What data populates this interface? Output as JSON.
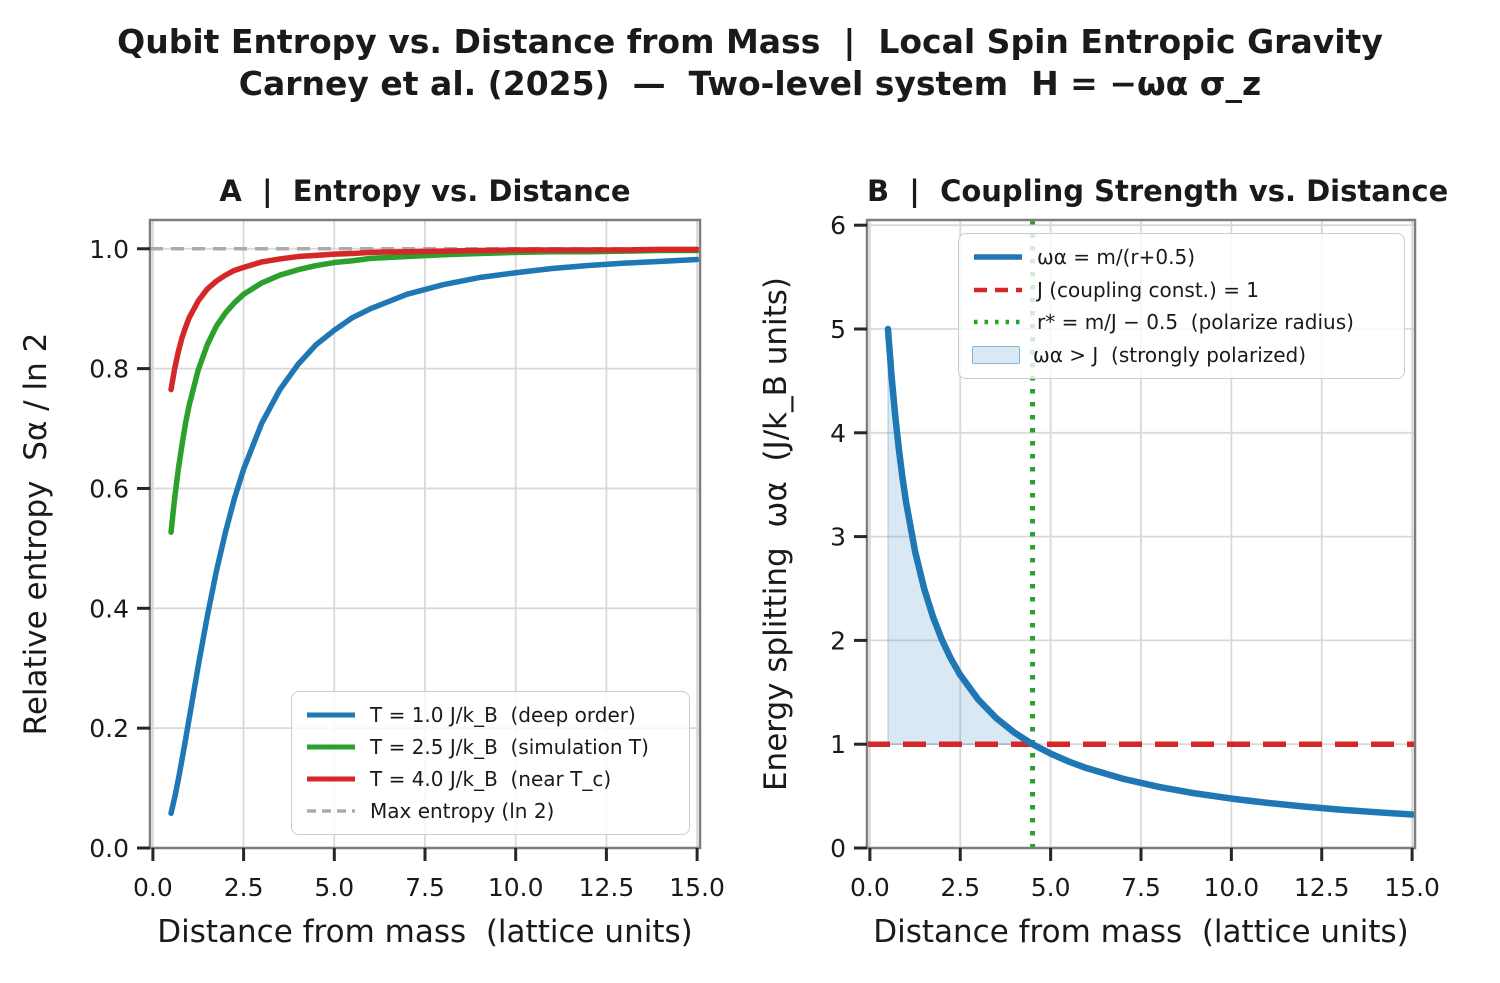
{
  "suptitle": {
    "line1": "Qubit Entropy vs. Distance from Mass  |  Local Spin Entropic Gravity",
    "line2": "Carney et al. (2025)  —  Two-level system  H = −ωα σ_z"
  },
  "colors": {
    "text": "#1a1a1a",
    "grid": "#d9d9d9",
    "spine": "#7e7e7e",
    "tick": "#262626",
    "blue": "#1f77b4",
    "green": "#2ca02c",
    "red": "#d62728",
    "gray_dash": "#ababab",
    "fill_blue": "rgba(31,119,180,0.17)",
    "fill_blue_edge": "rgba(31,119,180,0.35)"
  },
  "chart_data": [
    {
      "id": "A",
      "type": "line",
      "title": "A  |  Entropy vs. Distance",
      "xlabel": "Distance from mass  (lattice units)",
      "ylabel": "Relative entropy  Sα / ln 2",
      "xlim": [
        -0.08,
        15.08
      ],
      "ylim": [
        0,
        1.048
      ],
      "grid": true,
      "legend_position": "lower right",
      "xticks": {
        "values": [
          0,
          2.5,
          5,
          7.5,
          10,
          12.5,
          15
        ],
        "labels": [
          "0.0",
          "2.5",
          "5.0",
          "7.5",
          "10.0",
          "12.5",
          "15.0"
        ]
      },
      "yticks": {
        "values": [
          0,
          0.2,
          0.4,
          0.6,
          0.8,
          1.0
        ],
        "labels": [
          "0.0",
          "0.2",
          "0.4",
          "0.6",
          "0.8",
          "1.0"
        ]
      },
      "x": [
        0.5,
        0.6,
        0.7,
        0.8,
        0.9,
        1.0,
        1.25,
        1.5,
        1.75,
        2.0,
        2.25,
        2.5,
        3.0,
        3.5,
        4.0,
        4.5,
        5.0,
        5.5,
        6.0,
        7.0,
        8.0,
        9.0,
        10.0,
        11.0,
        12.0,
        13.0,
        14.0,
        15.0
      ],
      "series": [
        {
          "name": "T = 1.0 J/k_B  (deep order)",
          "type": "line",
          "color": "#1f77b4",
          "style": "solid",
          "values": [
            0.058,
            0.084,
            0.114,
            0.147,
            0.181,
            0.216,
            0.304,
            0.387,
            0.462,
            0.527,
            0.584,
            0.632,
            0.709,
            0.765,
            0.807,
            0.84,
            0.864,
            0.885,
            0.9,
            0.924,
            0.94,
            0.952,
            0.96,
            0.967,
            0.972,
            0.976,
            0.979,
            0.982
          ]
        },
        {
          "name": "T = 2.5 J/k_B  (simulation T)",
          "type": "line",
          "color": "#2ca02c",
          "style": "solid",
          "values": [
            0.527,
            0.584,
            0.632,
            0.672,
            0.709,
            0.739,
            0.798,
            0.84,
            0.871,
            0.893,
            0.91,
            0.924,
            0.943,
            0.956,
            0.965,
            0.972,
            0.977,
            0.98,
            0.984,
            0.987,
            0.99,
            0.992,
            0.994,
            0.995,
            0.995,
            0.996,
            0.997,
            0.997
          ]
        },
        {
          "name": "T = 4.0 J/k_B  (near T_c)",
          "type": "line",
          "color": "#d62728",
          "style": "solid",
          "values": [
            0.765,
            0.8,
            0.828,
            0.851,
            0.869,
            0.885,
            0.913,
            0.933,
            0.946,
            0.956,
            0.964,
            0.969,
            0.978,
            0.983,
            0.987,
            0.989,
            0.991,
            0.992,
            0.994,
            0.995,
            0.996,
            0.997,
            0.998,
            0.998,
            0.998,
            0.998,
            0.999,
            0.999
          ]
        },
        {
          "name": "Max entropy (ln 2)",
          "type": "hline",
          "y": 1.0,
          "color": "#ababab",
          "style": "dashed"
        }
      ]
    },
    {
      "id": "B",
      "type": "line",
      "title": "B  |  Coupling Strength vs. Distance",
      "xlabel": "Distance from mass  (lattice units)",
      "ylabel": "Energy splitting  ωα  (J/k_B units)",
      "xlim": [
        -0.08,
        15.08
      ],
      "ylim": [
        0,
        6.05
      ],
      "grid": true,
      "legend_position": "upper right",
      "xticks": {
        "values": [
          0,
          2.5,
          5,
          7.5,
          10,
          12.5,
          15
        ],
        "labels": [
          "0.0",
          "2.5",
          "5.0",
          "7.5",
          "10.0",
          "12.5",
          "15.0"
        ]
      },
      "yticks": {
        "values": [
          0,
          1,
          2,
          3,
          4,
          5,
          6
        ],
        "labels": [
          "0",
          "1",
          "2",
          "3",
          "4",
          "5",
          "6"
        ]
      },
      "x": [
        0.5,
        0.6,
        0.7,
        0.8,
        0.9,
        1.0,
        1.25,
        1.5,
        1.75,
        2.0,
        2.25,
        2.5,
        3.0,
        3.5,
        4.0,
        4.5,
        5.0,
        5.5,
        6.0,
        7.0,
        8.0,
        9.0,
        10.0,
        11.0,
        12.0,
        13.0,
        14.0,
        15.0
      ],
      "series": [
        {
          "name": "ωα = m/(r+0.5)",
          "type": "line",
          "color": "#1f77b4",
          "style": "solid",
          "values": [
            5.0,
            4.545,
            4.167,
            3.846,
            3.571,
            3.333,
            2.857,
            2.5,
            2.222,
            2.0,
            1.818,
            1.667,
            1.429,
            1.25,
            1.111,
            1.0,
            0.909,
            0.833,
            0.769,
            0.667,
            0.588,
            0.526,
            0.476,
            0.435,
            0.4,
            0.37,
            0.345,
            0.323
          ]
        },
        {
          "name": "J (coupling const.) = 1",
          "type": "hline",
          "y": 1.0,
          "color": "#d62728",
          "style": "dashed"
        },
        {
          "name": "r* = m/J − 0.5  (polarize radius)",
          "type": "vline",
          "x": 4.5,
          "color": "#2ca02c",
          "style": "dotted"
        },
        {
          "name": "ωα > J  (strongly polarized)",
          "type": "fill",
          "color": "#1f77b4",
          "opacity": 0.17,
          "x_range": [
            0.5,
            4.5
          ],
          "baseline": 1.0,
          "upper_series": 0
        }
      ]
    }
  ]
}
